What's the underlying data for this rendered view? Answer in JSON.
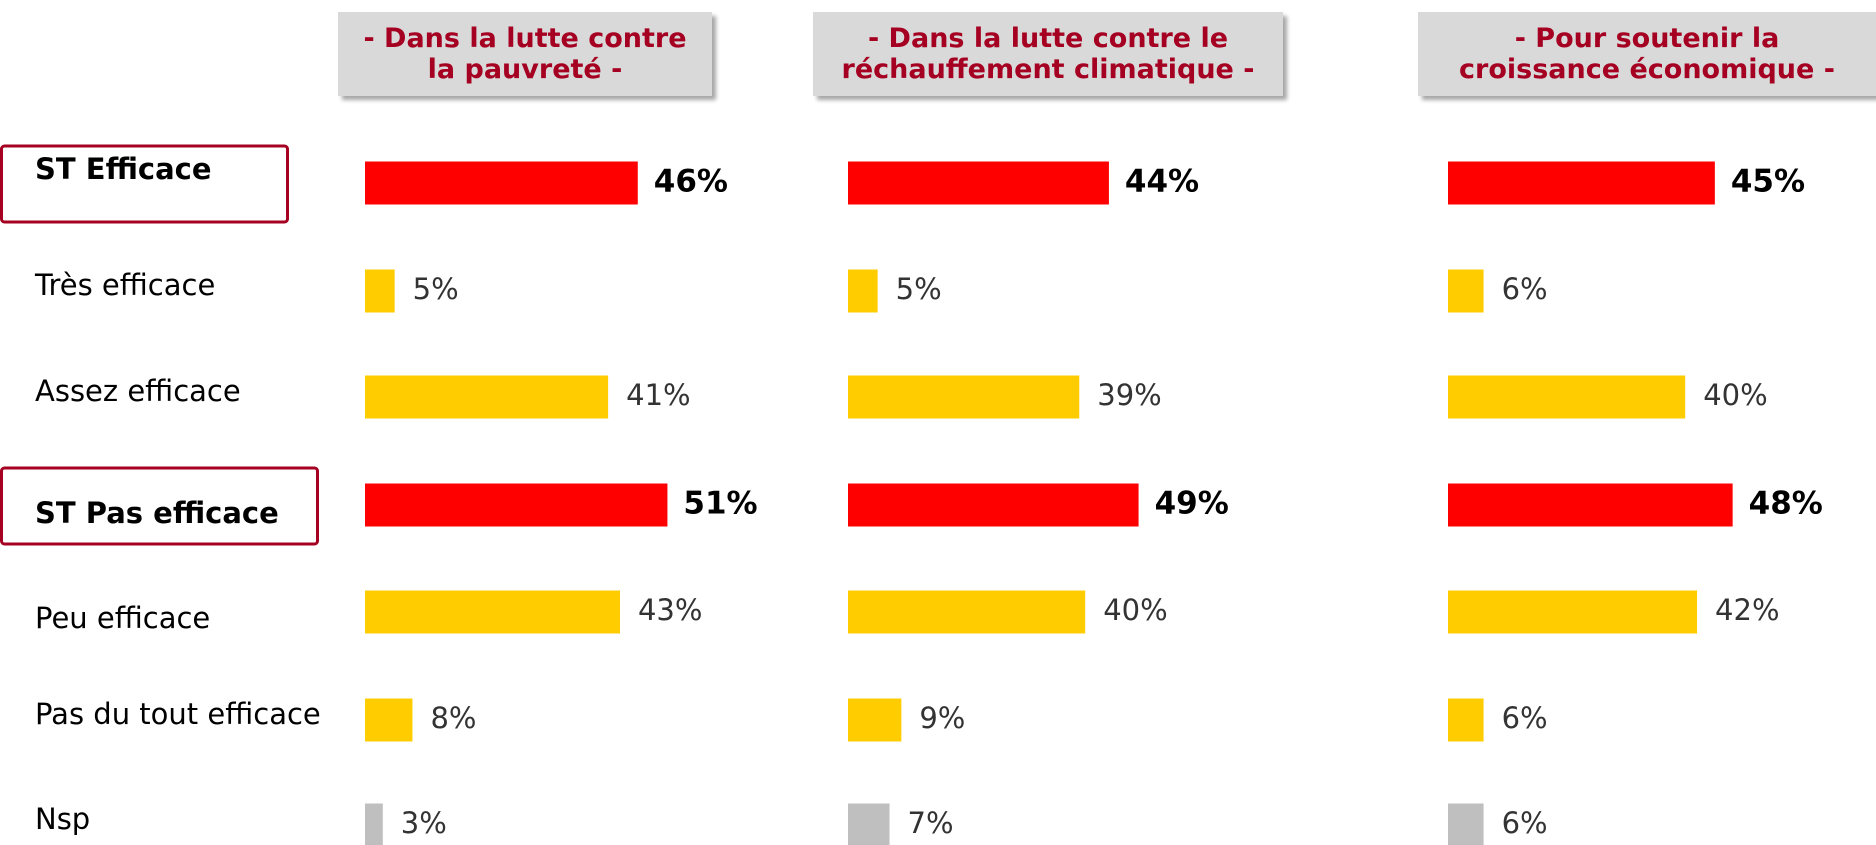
{
  "chart_data": {
    "type": "bar",
    "categories": [
      "ST Efficace",
      "Très efficace",
      "Assez efficace",
      "ST Pas efficace",
      "Peu efficace",
      "Pas du tout efficace",
      "Nsp"
    ],
    "emphasized": [
      true,
      false,
      false,
      true,
      false,
      false,
      false
    ],
    "colors": [
      "#ff0000",
      "#ffcc00",
      "#ffcc00",
      "#ff0000",
      "#ffcc00",
      "#ffcc00",
      "#bfbfbf"
    ],
    "series": [
      {
        "name": "- Dans la lutte contre la pauvreté -",
        "values": [
          46,
          5,
          41,
          51,
          43,
          8,
          3
        ],
        "value_labels": [
          "46%",
          "5%",
          "41%",
          "51%",
          "43%",
          "8%",
          "3%"
        ]
      },
      {
        "name": "- Dans la lutte contre le réchauffement climatique -",
        "values": [
          44,
          5,
          39,
          49,
          40,
          9,
          7
        ],
        "value_labels": [
          "44%",
          "5%",
          "39%",
          "49%",
          "40%",
          "9%",
          "7%"
        ]
      },
      {
        "name": "- Pour soutenir la croissance économique -",
        "values": [
          45,
          6,
          40,
          48,
          42,
          6,
          6
        ],
        "value_labels": [
          "45%",
          "6%",
          "40%",
          "48%",
          "42%",
          "6%",
          "6%"
        ]
      }
    ]
  }
}
